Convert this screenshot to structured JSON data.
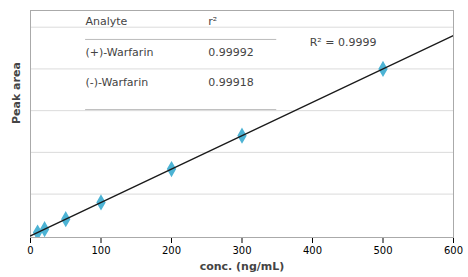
{
  "chart_data": {
    "type": "scatter",
    "xlabel": "conc. (ng/mL)",
    "ylabel": "Peak area",
    "series": [
      {
        "type": "scatter",
        "marker": "diamond",
        "color": "#4db3d4",
        "x": [
          10,
          20,
          50,
          100,
          200,
          300,
          500
        ],
        "values": [
          0.02,
          0.04,
          0.1,
          0.2,
          0.4,
          0.6,
          1.0
        ]
      },
      {
        "type": "line",
        "line_style": "solid",
        "color": "#1a1a1a",
        "x": [
          0,
          600
        ],
        "values": [
          0,
          1.2
        ]
      }
    ],
    "xlim": [
      0,
      600
    ],
    "xticks": [
      0,
      100,
      200,
      300,
      400,
      500,
      600
    ],
    "ylim": [
      -0.01,
      1.35
    ],
    "yticks": [
      0.25,
      0.5,
      0.75,
      1.0,
      1.25
    ],
    "grid": true,
    "tick_labels": "x",
    "annotations": [
      {
        "text": "R² = 0.9999"
      }
    ],
    "table": {
      "header": [
        "Analyte",
        "r²"
      ],
      "rows": [
        [
          "(+)-Warfarin",
          "0.99992"
        ],
        [
          "(-)-Warfarin",
          "0.99918"
        ]
      ]
    }
  }
}
